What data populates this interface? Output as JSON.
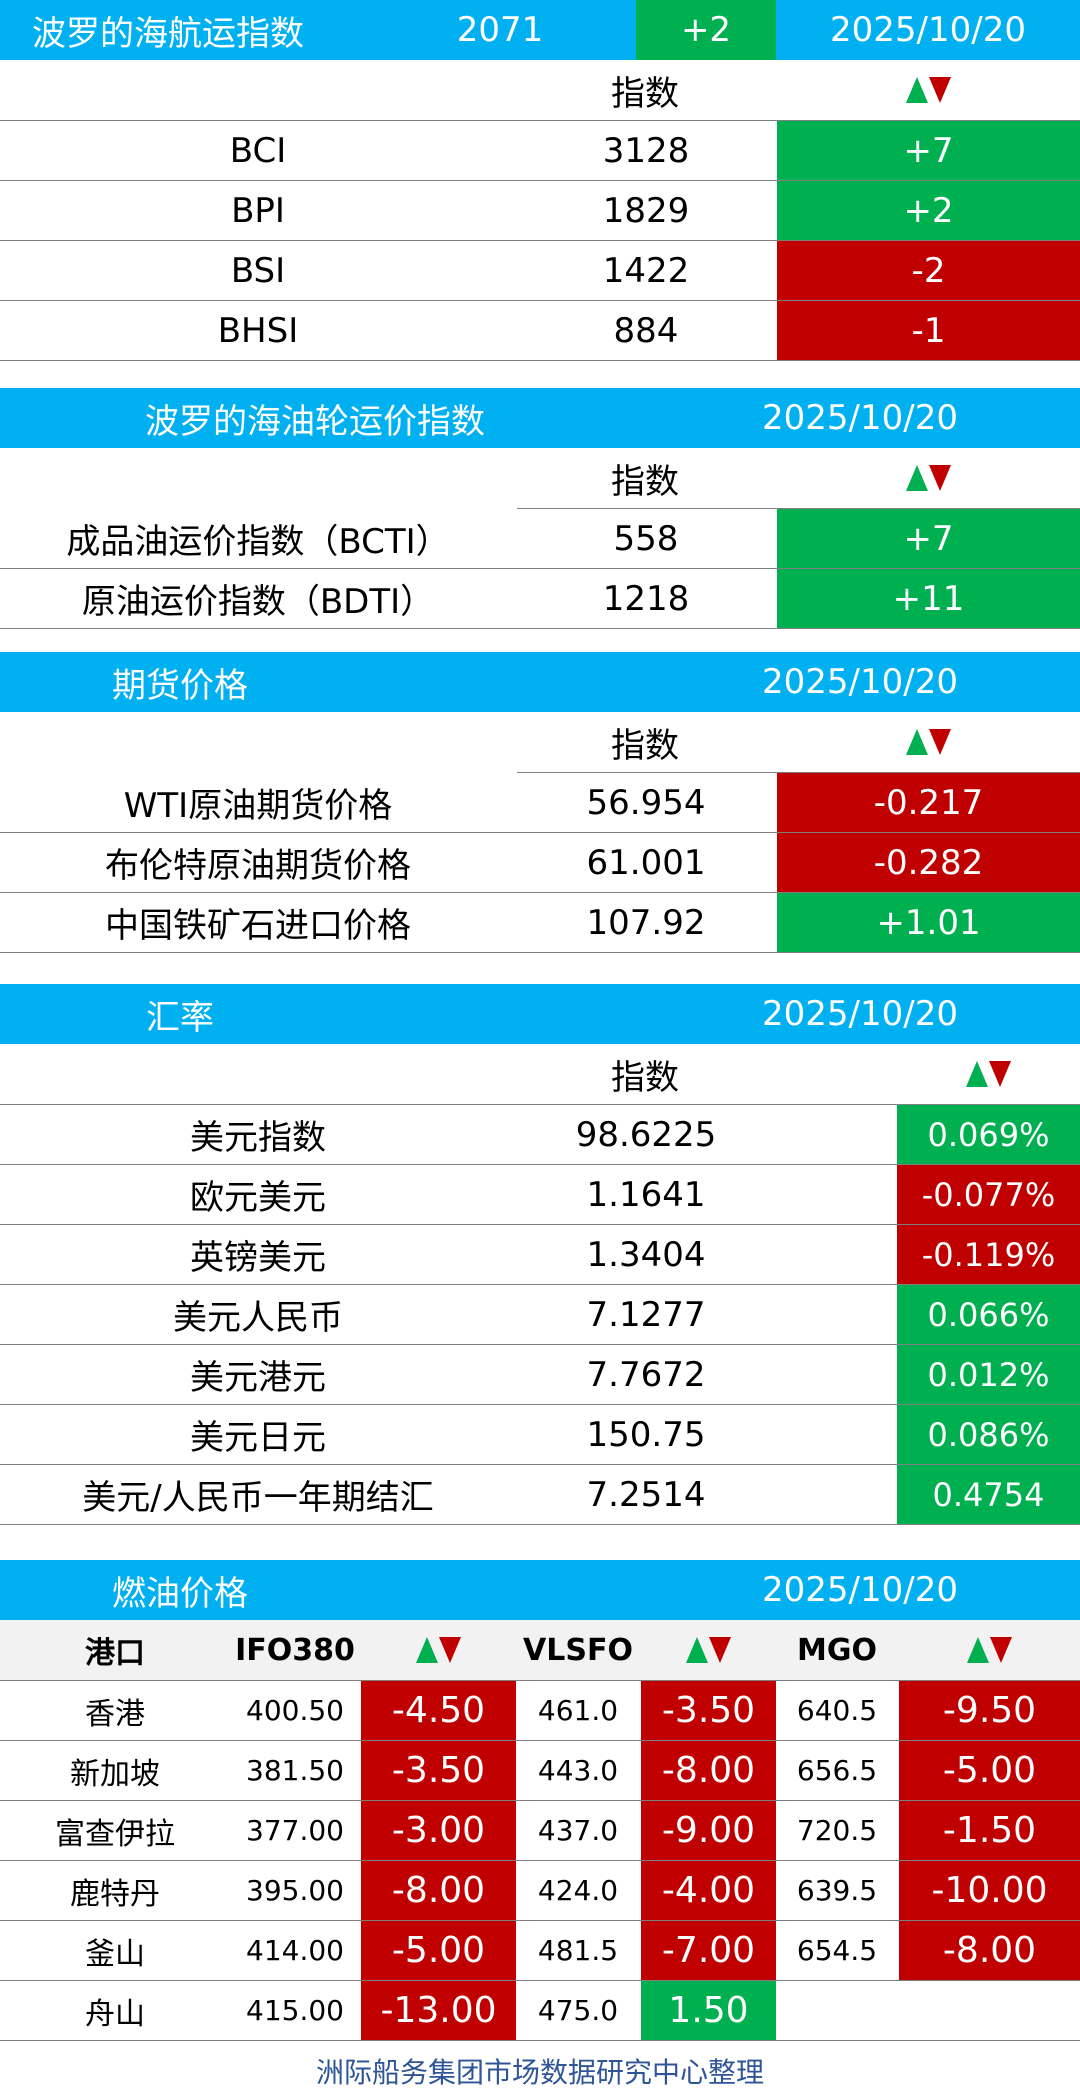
{
  "colors": {
    "header_blue": "#00B0F0",
    "up_green": "#00B050",
    "down_red": "#C00000",
    "footer_blue": "#2F5597"
  },
  "baltic": {
    "title": "波罗的海航运指数",
    "value": "2071",
    "change": "+2",
    "date": "2025/10/20",
    "col_index": "指数",
    "arrow_icon": "up-down-arrows-icon",
    "rows": [
      {
        "name": "BCI",
        "value": "3128",
        "change": "+7"
      },
      {
        "name": "BPI",
        "value": "1829",
        "change": "+2"
      },
      {
        "name": "BSI",
        "value": "1422",
        "change": "-2"
      },
      {
        "name": "BHSI",
        "value": "884",
        "change": "-1"
      }
    ]
  },
  "tanker": {
    "title": "波罗的海油轮运价指数",
    "date": "2025/10/20",
    "col_index": "指数",
    "rows": [
      {
        "name": "成品油运价指数（BCTI）",
        "value": "558",
        "change": "+7"
      },
      {
        "name": "原油运价指数（BDTI）",
        "value": "1218",
        "change": "+11"
      }
    ]
  },
  "futures": {
    "title": "期货价格",
    "date": "2025/10/20",
    "col_index": "指数",
    "rows": [
      {
        "name": "WTI原油期货价格",
        "value": "56.954",
        "change": "-0.217"
      },
      {
        "name": "布伦特原油期货价格",
        "value": "61.001",
        "change": "-0.282"
      },
      {
        "name": "中国铁矿石进口价格",
        "value": "107.92",
        "change": "+1.01"
      }
    ]
  },
  "fx": {
    "title": "汇率",
    "date": "2025/10/20",
    "col_index": "指数",
    "rows": [
      {
        "name": "美元指数",
        "value": "98.6225",
        "change": "0.069%"
      },
      {
        "name": "欧元美元",
        "value": "1.1641",
        "change": "-0.077%"
      },
      {
        "name": "英镑美元",
        "value": "1.3404",
        "change": "-0.119%"
      },
      {
        "name": "美元人民币",
        "value": "7.1277",
        "change": "0.066%"
      },
      {
        "name": "美元港元",
        "value": "7.7672",
        "change": "0.012%"
      },
      {
        "name": "美元日元",
        "value": "150.75",
        "change": "0.086%"
      },
      {
        "name": "美元/人民币一年期结汇",
        "value": "7.2514",
        "change": "0.4754"
      }
    ]
  },
  "bunker": {
    "title": "燃油价格",
    "date": "2025/10/20",
    "headers": {
      "port": "港口",
      "ifo": "IFO380",
      "vlsfo": "VLSFO",
      "mgo": "MGO"
    },
    "rows": [
      {
        "port": "香港",
        "ifo": "400.50",
        "ifo_chg": "-4.50",
        "vlsfo": "461.0",
        "vlsfo_chg": "-3.50",
        "mgo": "640.5",
        "mgo_chg": "-9.50"
      },
      {
        "port": "新加坡",
        "ifo": "381.50",
        "ifo_chg": "-3.50",
        "vlsfo": "443.0",
        "vlsfo_chg": "-8.00",
        "mgo": "656.5",
        "mgo_chg": "-5.00"
      },
      {
        "port": "富查伊拉",
        "ifo": "377.00",
        "ifo_chg": "-3.00",
        "vlsfo": "437.0",
        "vlsfo_chg": "-9.00",
        "mgo": "720.5",
        "mgo_chg": "-1.50"
      },
      {
        "port": "鹿特丹",
        "ifo": "395.00",
        "ifo_chg": "-8.00",
        "vlsfo": "424.0",
        "vlsfo_chg": "-4.00",
        "mgo": "639.5",
        "mgo_chg": "-10.00"
      },
      {
        "port": "釜山",
        "ifo": "414.00",
        "ifo_chg": "-5.00",
        "vlsfo": "481.5",
        "vlsfo_chg": "-7.00",
        "mgo": "654.5",
        "mgo_chg": "-8.00"
      },
      {
        "port": "舟山",
        "ifo": "415.00",
        "ifo_chg": "-13.00",
        "vlsfo": "475.0",
        "vlsfo_chg": "1.50",
        "mgo": "",
        "mgo_chg": ""
      }
    ]
  },
  "footer": "洲际船务集团市场数据研究中心整理"
}
